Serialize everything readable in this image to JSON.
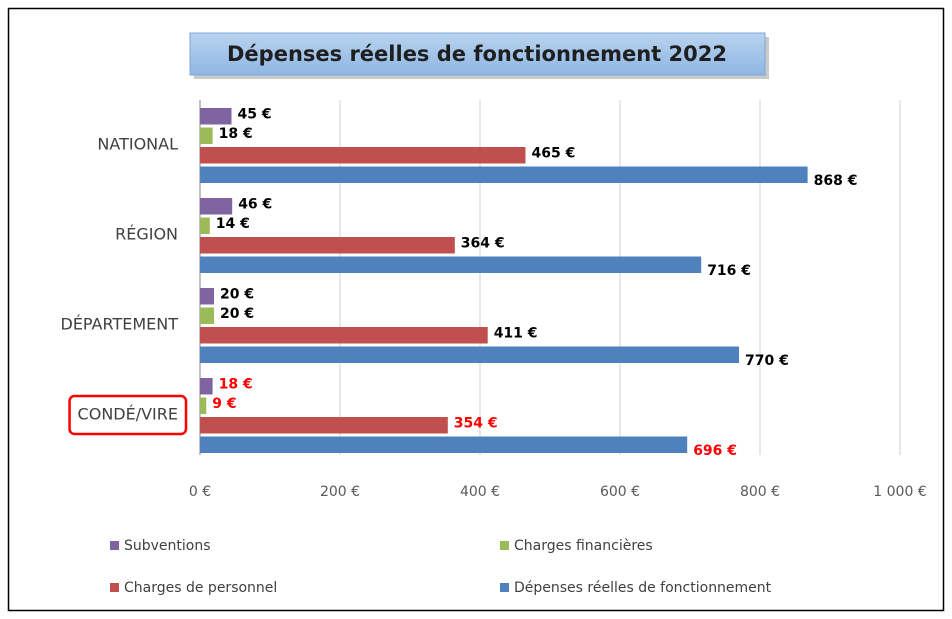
{
  "chart_data": {
    "type": "hbar",
    "title": "Dépenses réelles de fonctionnement 2022",
    "categories": [
      "NATIONAL",
      "RÉGION",
      "DÉPARTEMENT",
      "CONDÉ/VIRE"
    ],
    "series": [
      {
        "name": "Subventions",
        "color": "#8064a2",
        "values": [
          45,
          46,
          20,
          18
        ],
        "value_labels": [
          "45 €",
          "46 €",
          "20 €",
          "18 €"
        ]
      },
      {
        "name": "Charges financières",
        "color": "#9bbb59",
        "values": [
          18,
          14,
          20,
          9
        ],
        "value_labels": [
          "18 €",
          "14 €",
          "20 €",
          "9 €"
        ]
      },
      {
        "name": "Charges de personnel",
        "color": "#c0504d",
        "values": [
          465,
          364,
          411,
          354
        ],
        "value_labels": [
          "465 €",
          "364 €",
          "411 €",
          "354 €"
        ]
      },
      {
        "name": "Dépenses réelles de fonctionnement",
        "color": "#4f81bd",
        "values": [
          868,
          716,
          770,
          696
        ],
        "value_labels": [
          "868 €",
          "716 €",
          "770 €",
          "696 €"
        ]
      }
    ],
    "xlim": [
      0,
      1000
    ],
    "xticks": [
      {
        "value": 0,
        "label": "0 €"
      },
      {
        "value": 200,
        "label": "200 €"
      },
      {
        "value": 400,
        "label": "400 €"
      },
      {
        "value": 600,
        "label": "600 €"
      },
      {
        "value": 800,
        "label": "800 €"
      },
      {
        "value": 1000,
        "label": "1 000 €"
      }
    ],
    "grid": true,
    "legend": "bottom",
    "highlight": {
      "category": 3,
      "color": "#ff0000"
    }
  }
}
